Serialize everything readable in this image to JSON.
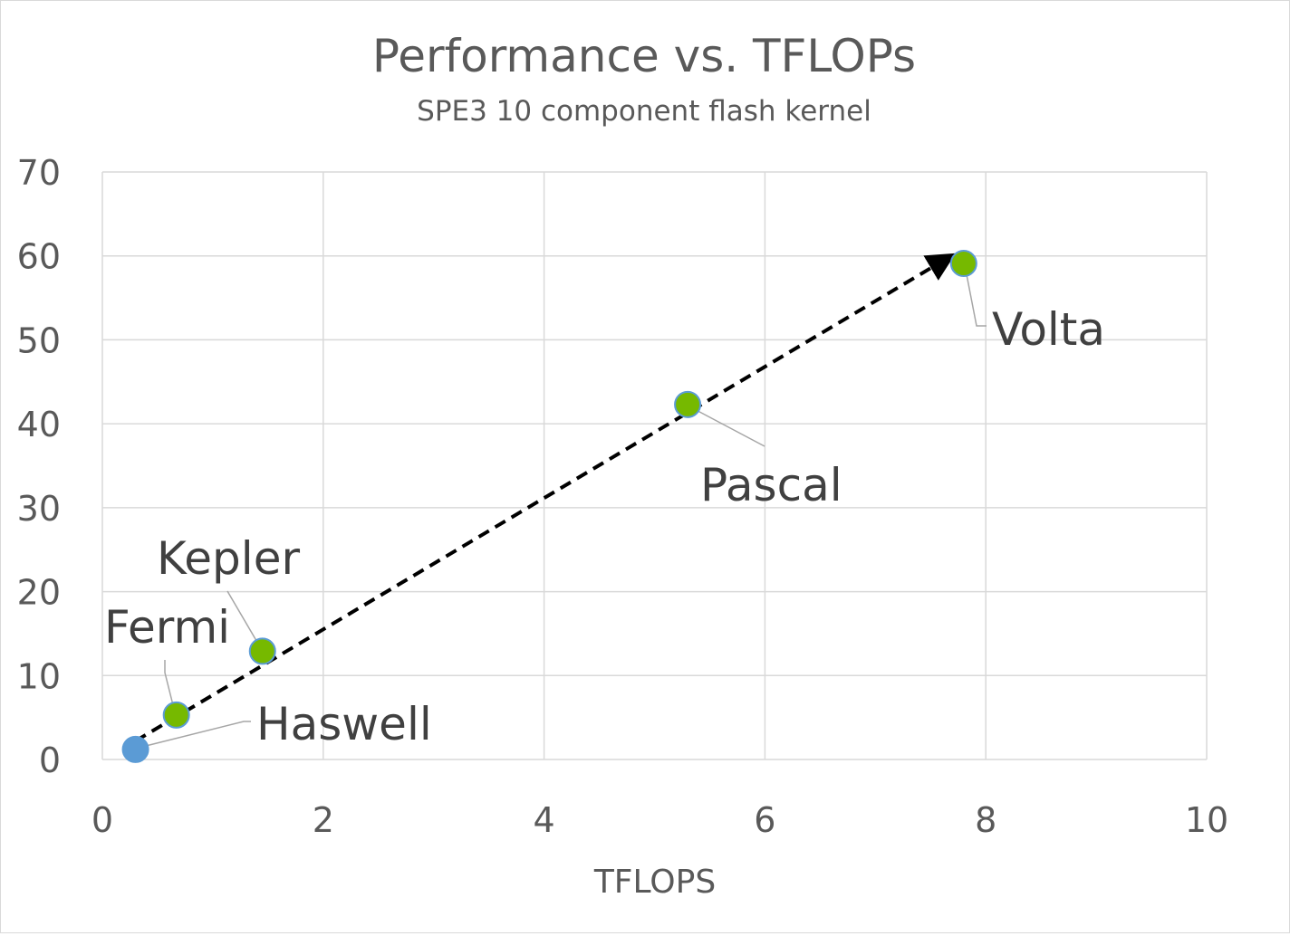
{
  "chart_data": {
    "type": "scatter",
    "title": "Performance vs. TFLOPs",
    "subtitle": "SPE3 10 component flash kernel",
    "xlabel": "TFLOPS",
    "ylabel": "",
    "xlim": [
      0,
      10
    ],
    "ylim": [
      0,
      70
    ],
    "xticks": [
      0,
      2,
      4,
      6,
      8,
      10
    ],
    "yticks": [
      0,
      10,
      20,
      30,
      40,
      50,
      60,
      70
    ],
    "grid": true,
    "legend": "none",
    "points": [
      {
        "label": "Haswell",
        "x": 0.3,
        "y": 1.2,
        "color": "#5b9bd5"
      },
      {
        "label": "Fermi",
        "x": 0.67,
        "y": 5.3,
        "color": "#70ad47"
      },
      {
        "label": "Kepler",
        "x": 1.45,
        "y": 12.9,
        "color": "#70ad47"
      },
      {
        "label": "Pascal",
        "x": 5.3,
        "y": 42.3,
        "color": "#70ad47"
      },
      {
        "label": "Volta",
        "x": 7.8,
        "y": 59.1,
        "color": "#70ad47"
      }
    ],
    "trend_arrow": {
      "from": [
        0.3,
        2.2
      ],
      "to": [
        7.7,
        60.1
      ],
      "style": "dashed",
      "color": "#000000"
    },
    "colors": {
      "haswell": "#5b9bd5",
      "gpu": "#76b900",
      "gpu_outline": "#5b9bd5",
      "grid": "#d9d9d9",
      "text": "#595959",
      "label_text": "#404040",
      "leader": "#a6a6a6"
    }
  }
}
